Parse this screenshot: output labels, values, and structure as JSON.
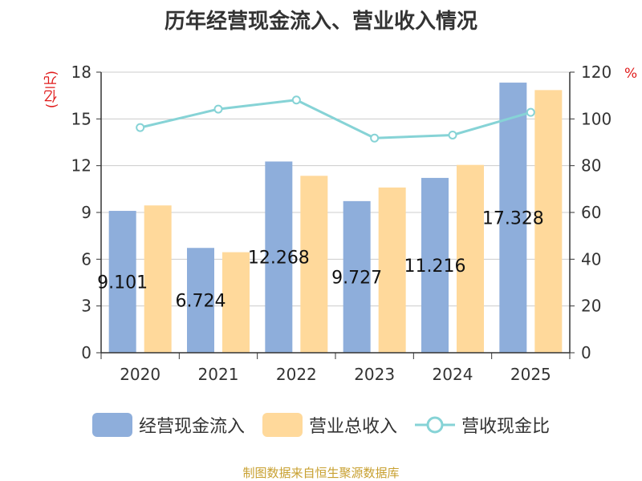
{
  "chart_data": {
    "type": "bar",
    "title": "历年经营现金流入、营业收入情况",
    "ylabel_left": "(亿元)",
    "ylabel_right": "%",
    "categories": [
      "2020",
      "2021",
      "2022",
      "2023",
      "2024",
      "2025"
    ],
    "series": [
      {
        "name": "经营现金流入",
        "kind": "bar",
        "axis": "left",
        "color": "#8eaedb",
        "values": [
          9.101,
          6.724,
          12.268,
          9.727,
          11.216,
          17.328
        ],
        "labels": [
          "9.101",
          "6.724",
          "12.268",
          "9.727",
          "11.216",
          "17.328"
        ]
      },
      {
        "name": "营业总收入",
        "kind": "bar",
        "axis": "left",
        "color": "#ffd99b",
        "values": [
          9.45,
          6.45,
          11.35,
          10.6,
          12.05,
          16.85
        ]
      },
      {
        "name": "营收现金比",
        "kind": "line",
        "axis": "right",
        "color": "#86d3d6",
        "values": [
          96.3,
          104.2,
          108.1,
          91.8,
          93.1,
          102.8
        ]
      }
    ],
    "yleft_ticks": [
      0,
      3,
      6,
      9,
      12,
      15,
      18
    ],
    "yright_ticks": [
      0,
      20,
      40,
      60,
      80,
      100,
      120
    ],
    "ylim_left": [
      0,
      18
    ],
    "ylim_right": [
      0,
      120
    ],
    "grid": true,
    "legend_position": "bottom"
  },
  "footer": "制图数据来自恒生聚源数据库"
}
